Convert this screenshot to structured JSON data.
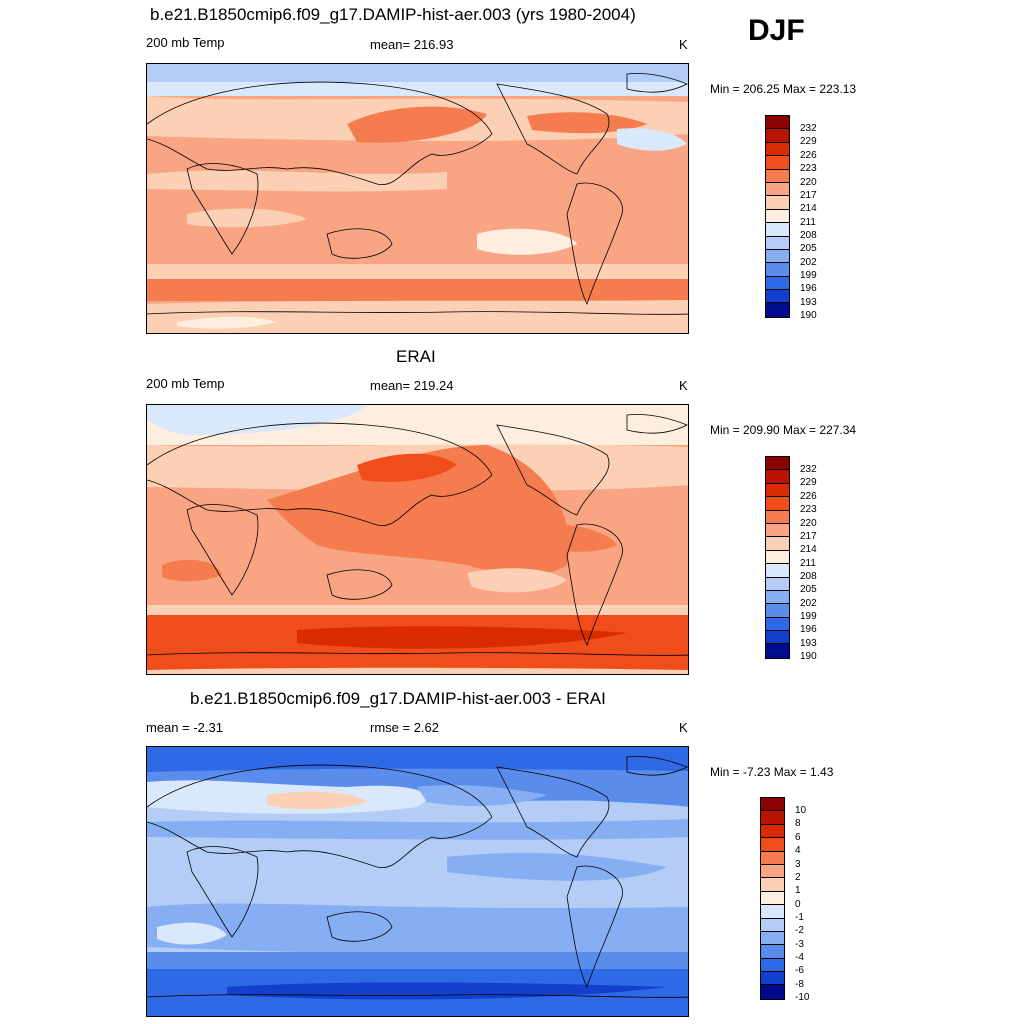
{
  "season": "DJF",
  "panels": [
    {
      "title": "b.e21.B1850cmip6.f09_g17.DAMIP-hist-aer.003 (yrs 1980-2004)",
      "left_label": "200 mb Temp",
      "center_label": "mean= 216.93",
      "units": "K",
      "min_max": "Min = 206.25 Max = 223.13",
      "colorbar_labels": [
        "232",
        "229",
        "226",
        "223",
        "220",
        "217",
        "214",
        "211",
        "208",
        "205",
        "202",
        "199",
        "196",
        "193",
        "190"
      ],
      "colorbar_colors": [
        "#8b0000",
        "#b81400",
        "#d82b00",
        "#f04d1a",
        "#f47c4e",
        "#f9a584",
        "#fcd0b5",
        "#fdeee0",
        "#d9e8fb",
        "#b3cdf7",
        "#86aef2",
        "#5a8cec",
        "#2f6ae6",
        "#1240cc",
        "#000c8f"
      ]
    },
    {
      "title": "ERAI",
      "left_label": "200 mb Temp",
      "center_label": "mean= 219.24",
      "units": "K",
      "min_max": "Min = 209.90 Max = 227.34",
      "colorbar_labels": [
        "232",
        "229",
        "226",
        "223",
        "220",
        "217",
        "214",
        "211",
        "208",
        "205",
        "202",
        "199",
        "196",
        "193",
        "190"
      ],
      "colorbar_colors": [
        "#8b0000",
        "#b81400",
        "#d82b00",
        "#f04d1a",
        "#f47c4e",
        "#f9a584",
        "#fcd0b5",
        "#fdeee0",
        "#d9e8fb",
        "#b3cdf7",
        "#86aef2",
        "#5a8cec",
        "#2f6ae6",
        "#1240cc",
        "#000c8f"
      ]
    },
    {
      "title": "b.e21.B1850cmip6.f09_g17.DAMIP-hist-aer.003 - ERAI",
      "left_label": "mean =  -2.31",
      "center_label": "rmse =   2.62",
      "units": "K",
      "min_max": "Min =  -7.23 Max =   1.43",
      "colorbar_labels": [
        "10",
        "8",
        "6",
        "4",
        "3",
        "2",
        "1",
        "0",
        "-1",
        "-2",
        "-3",
        "-4",
        "-6",
        "-8",
        "-10"
      ],
      "colorbar_colors": [
        "#8b0000",
        "#b81400",
        "#d82b00",
        "#f04d1a",
        "#f47c4e",
        "#f9a584",
        "#fcd0b5",
        "#fdeee0",
        "#d9e8fb",
        "#b3cdf7",
        "#86aef2",
        "#5a8cec",
        "#2f6ae6",
        "#1240cc",
        "#000c8f"
      ]
    }
  ]
}
